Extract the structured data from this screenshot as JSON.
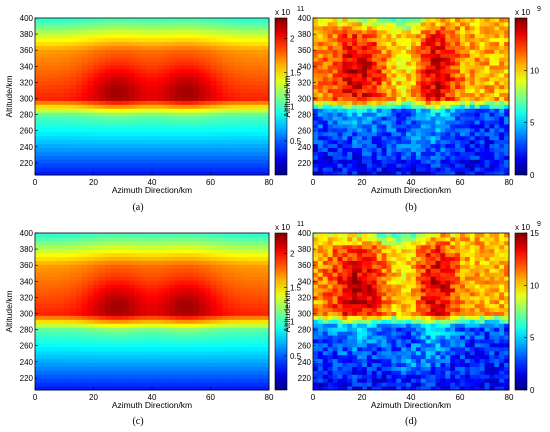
{
  "chart_data": [
    {
      "type": "heatmap",
      "panel_label": "(a)",
      "model": "smooth",
      "xlabel": "Azimuth Direction/km",
      "ylabel": "Altitude/km",
      "xlim": [
        0,
        80
      ],
      "ylim": [
        205,
        400
      ],
      "xticks": [
        "0",
        "20",
        "40",
        "60",
        "80"
      ],
      "yticks": [
        "220",
        "240",
        "260",
        "280",
        "300",
        "320",
        "340",
        "360",
        "380",
        "400"
      ],
      "colorbar": {
        "multiplier": "x 10",
        "exponent": "11",
        "max": 2.3,
        "ticks": [
          "0.5",
          "1",
          "1.5",
          "2"
        ]
      }
    },
    {
      "type": "heatmap",
      "panel_label": "(b)",
      "model": "noisy",
      "xlabel": "Azimuth Direction/km",
      "ylabel": "Altitude/km",
      "xlim": [
        0,
        80
      ],
      "ylim": [
        205,
        400
      ],
      "xticks": [
        "0",
        "20",
        "40",
        "60",
        "80"
      ],
      "yticks": [
        "220",
        "240",
        "260",
        "280",
        "300",
        "320",
        "340",
        "360",
        "380",
        "400"
      ],
      "colorbar": {
        "multiplier": "x 10",
        "exponent": "9",
        "max": 15,
        "ticks": [
          "0",
          "5",
          "10"
        ]
      }
    },
    {
      "type": "heatmap",
      "panel_label": "(c)",
      "model": "smooth",
      "xlabel": "Azimuth Direction/km",
      "ylabel": "Altitude/km",
      "xlim": [
        0,
        80
      ],
      "ylim": [
        205,
        400
      ],
      "xticks": [
        "0",
        "20",
        "40",
        "60",
        "80"
      ],
      "yticks": [
        "220",
        "240",
        "260",
        "280",
        "300",
        "320",
        "340",
        "360",
        "380",
        "400"
      ],
      "colorbar": {
        "multiplier": "x 10",
        "exponent": "11",
        "max": 2.3,
        "ticks": [
          "0.5",
          "1",
          "1.5",
          "2"
        ]
      }
    },
    {
      "type": "heatmap",
      "panel_label": "(d)",
      "model": "noisy",
      "xlabel": "Azimuth Direction/km",
      "ylabel": "Altitude/km",
      "xlim": [
        0,
        80
      ],
      "ylim": [
        205,
        400
      ],
      "xticks": [
        "0",
        "20",
        "40",
        "60",
        "80"
      ],
      "yticks": [
        "220",
        "240",
        "260",
        "280",
        "300",
        "320",
        "340",
        "360",
        "380",
        "400"
      ],
      "colorbar": {
        "multiplier": "x 10",
        "exponent": "9",
        "max": 15,
        "ticks": [
          "0",
          "5",
          "10",
          "15"
        ]
      }
    }
  ]
}
